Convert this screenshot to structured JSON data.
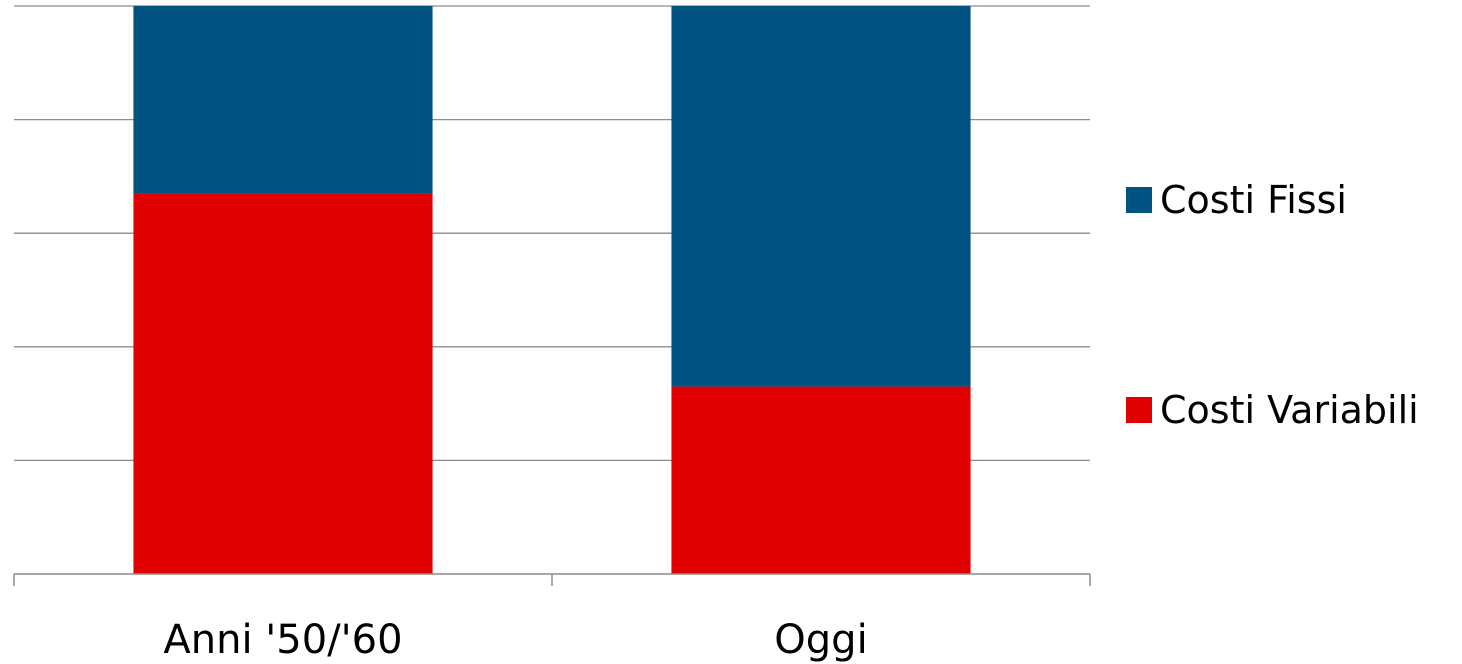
{
  "chart_data": {
    "type": "bar",
    "stacked": true,
    "percent_stacked": true,
    "categories": [
      "Anni '50/'60",
      "Oggi"
    ],
    "series": [
      {
        "name": "Costi Variabili",
        "values": [
          67,
          33
        ],
        "color": "#E00000"
      },
      {
        "name": "Costi Fissi",
        "values": [
          33,
          67
        ],
        "color": "#005380"
      }
    ],
    "ylim": [
      0,
      100
    ],
    "y_gridlines": [
      0,
      20,
      40,
      60,
      80,
      100
    ],
    "legend_order": [
      "Costi Fissi",
      "Costi Variabili"
    ],
    "legend_position": "right",
    "grid": true,
    "title": "",
    "xlabel": "",
    "ylabel": ""
  }
}
